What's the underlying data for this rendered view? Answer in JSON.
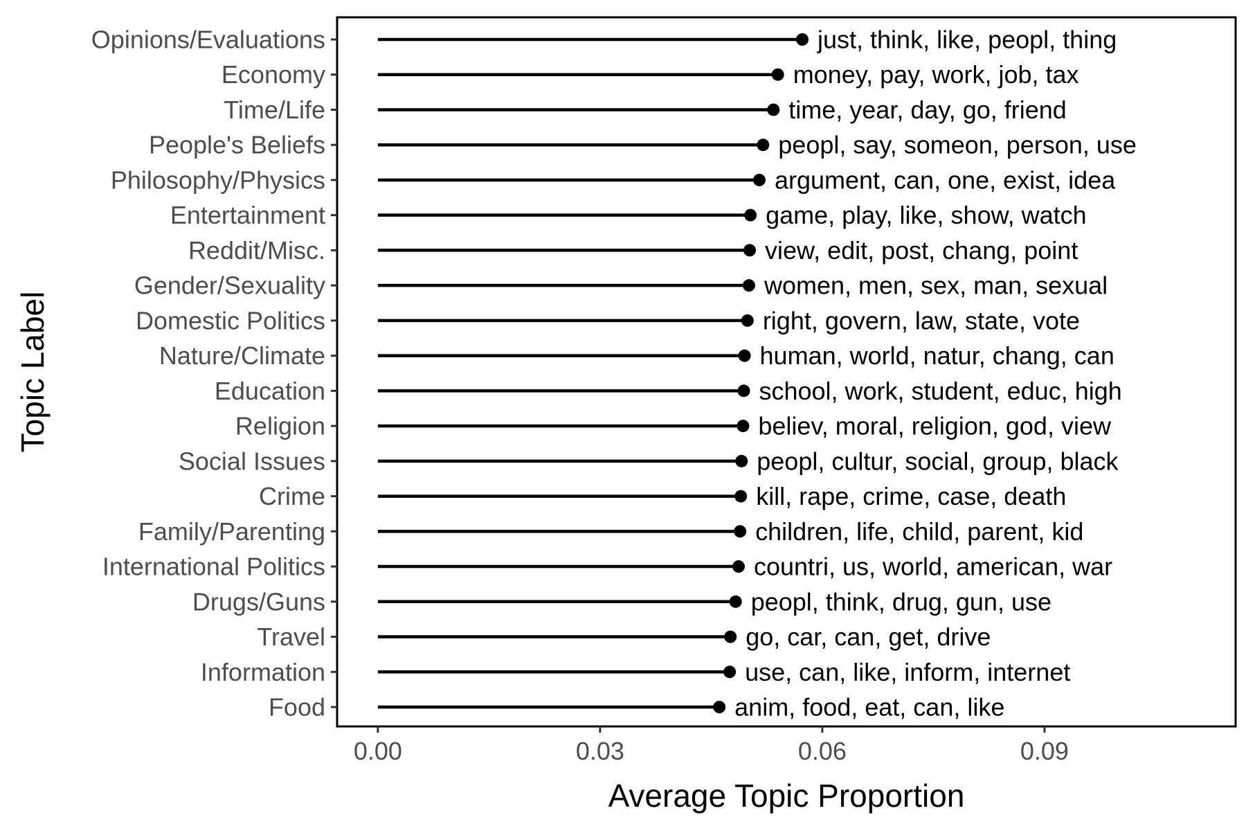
{
  "chart_data": {
    "type": "lollipop",
    "xlabel": "Average Topic Proportion",
    "ylabel": "Topic Label",
    "xlim": [
      -0.0055,
      0.1158
    ],
    "xticks": [
      0.0,
      0.03,
      0.06,
      0.09
    ],
    "xtick_labels": [
      "0.00",
      "0.03",
      "0.06",
      "0.09"
    ],
    "grid": false,
    "legend": "none",
    "colors": {
      "marks": "#000000",
      "tick_text": "#4d4d4d",
      "title_text": "#000000"
    },
    "topics": [
      {
        "label": "Opinions/Evaluations",
        "value": 0.0573,
        "terms": "just, think, like, peopl, thing"
      },
      {
        "label": "Economy",
        "value": 0.054,
        "terms": "money, pay, work, job, tax"
      },
      {
        "label": "Time/Life",
        "value": 0.0534,
        "terms": "time, year, day, go, friend"
      },
      {
        "label": "People's Beliefs",
        "value": 0.052,
        "terms": "peopl, say, someon, person, use"
      },
      {
        "label": "Philosophy/Physics",
        "value": 0.0515,
        "terms": "argument, can, one, exist, idea"
      },
      {
        "label": "Entertainment",
        "value": 0.0503,
        "terms": "game, play, like, show, watch"
      },
      {
        "label": "Reddit/Misc.",
        "value": 0.0502,
        "terms": "view, edit, post, chang, point"
      },
      {
        "label": "Gender/Sexuality",
        "value": 0.0501,
        "terms": "women, men, sex, man, sexual"
      },
      {
        "label": "Domestic Politics",
        "value": 0.0499,
        "terms": "right, govern, law, state, vote"
      },
      {
        "label": "Nature/Climate",
        "value": 0.0495,
        "terms": "human, world, natur, chang, can"
      },
      {
        "label": "Education",
        "value": 0.0494,
        "terms": "school, work, student, educ, high"
      },
      {
        "label": "Religion",
        "value": 0.0493,
        "terms": "believ, moral, religion, god, view"
      },
      {
        "label": "Social Issues",
        "value": 0.0491,
        "terms": "peopl, cultur, social, group, black"
      },
      {
        "label": "Crime",
        "value": 0.049,
        "terms": "kill, rape, crime, case, death"
      },
      {
        "label": "Family/Parenting",
        "value": 0.0489,
        "terms": "children, life, child, parent, kid"
      },
      {
        "label": "International Politics",
        "value": 0.0487,
        "terms": "countri, us, world, american, war"
      },
      {
        "label": "Drugs/Guns",
        "value": 0.0483,
        "terms": "peopl, think, drug, gun, use"
      },
      {
        "label": "Travel",
        "value": 0.0476,
        "terms": "go, car, can, get, drive"
      },
      {
        "label": "Information",
        "value": 0.0475,
        "terms": "use, can, like, inform, internet"
      },
      {
        "label": "Food",
        "value": 0.0461,
        "terms": "anim, food, eat, can, like"
      }
    ]
  }
}
